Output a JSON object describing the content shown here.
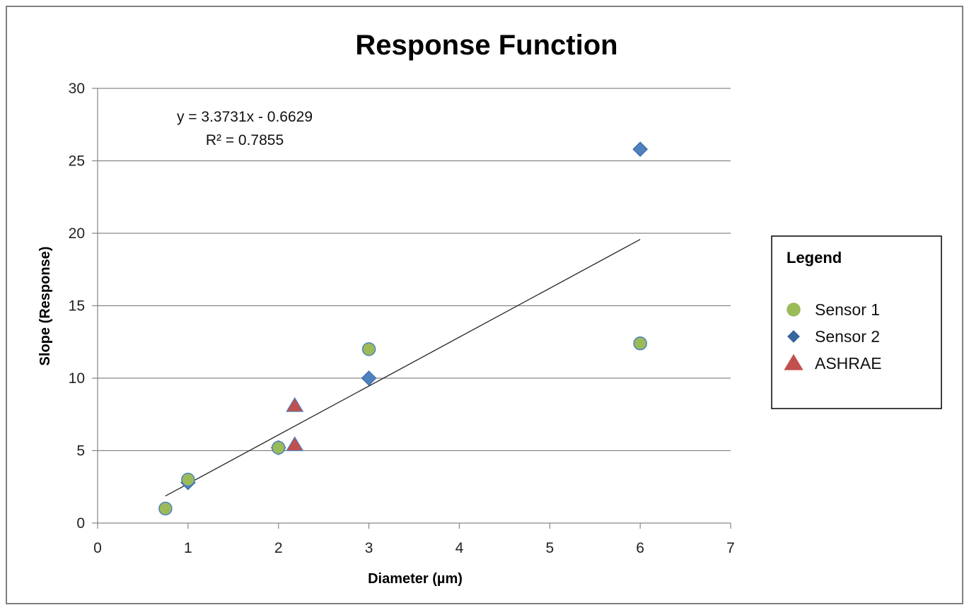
{
  "chart_data": {
    "type": "scatter",
    "title": "Response Function",
    "xlabel": "Diameter (µm)",
    "ylabel": "Slope (Response)",
    "xlim": [
      0,
      7
    ],
    "ylim": [
      0,
      30
    ],
    "xticks": [
      "0",
      "1",
      "2",
      "3",
      "4",
      "5",
      "6",
      "7"
    ],
    "yticks": [
      "0",
      "5",
      "10",
      "15",
      "20",
      "25",
      "30"
    ],
    "grid": "horizontal",
    "legend_title": "Legend",
    "legend_position": "right",
    "series": [
      {
        "name": "Sensor 1",
        "marker": "circle",
        "color": "#9BBB59",
        "edge_color": "#4F81BD",
        "points": [
          [
            0.75,
            1.0
          ],
          [
            1.0,
            3.0
          ],
          [
            2.0,
            5.2
          ],
          [
            3.0,
            12.0
          ],
          [
            6.0,
            12.4
          ]
        ]
      },
      {
        "name": "Sensor 2",
        "marker": "diamond",
        "color": "#4F81BD",
        "edge_color": "#3A6BA6",
        "points": [
          [
            1.0,
            2.8
          ],
          [
            2.0,
            5.2
          ],
          [
            3.0,
            10.0
          ],
          [
            6.0,
            25.8
          ]
        ]
      },
      {
        "name": "ASHRAE",
        "marker": "triangle",
        "color": "#C0504D",
        "edge_color": "#4F81BD",
        "points": [
          [
            2.18,
            8.1
          ],
          [
            2.18,
            5.4
          ]
        ]
      }
    ],
    "trendline": {
      "type": "linear",
      "slope": 3.3731,
      "intercept": -0.6629,
      "x_range": [
        0.75,
        6.0
      ],
      "color": "#222222",
      "equation_label": "y = 3.3731x - 0.6629",
      "r2_label": "R² = 0.7855"
    }
  }
}
